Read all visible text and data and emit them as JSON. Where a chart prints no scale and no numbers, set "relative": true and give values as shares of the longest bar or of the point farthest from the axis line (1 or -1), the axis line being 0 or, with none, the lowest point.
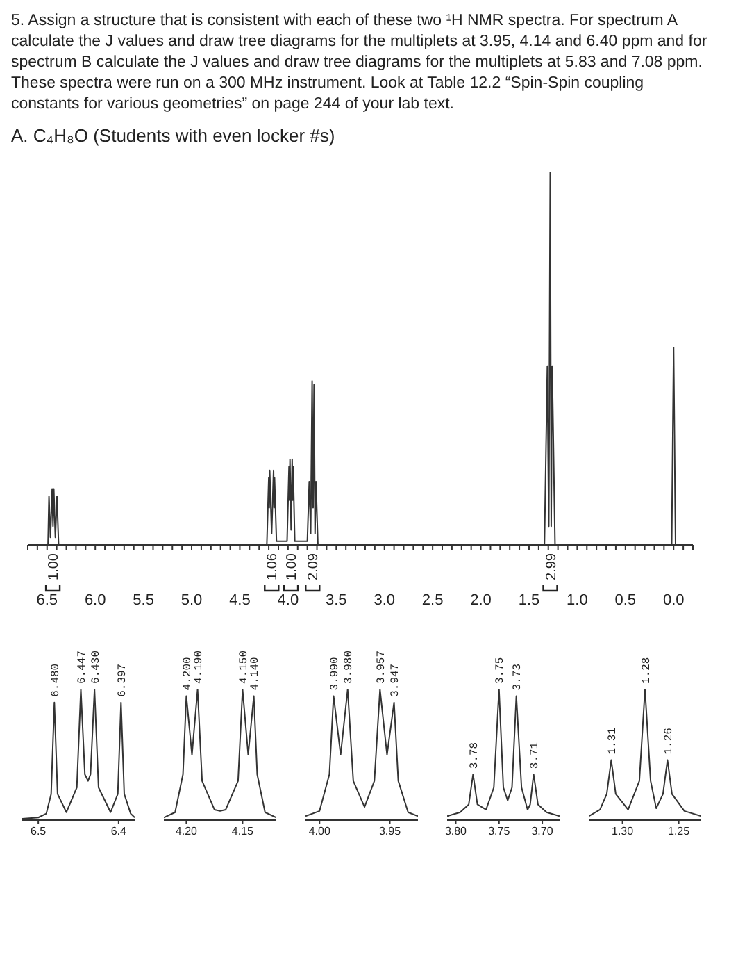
{
  "chart_data": [
    {
      "type": "line",
      "title": "5. Assign a structure that is consistent with each of these two ¹H NMR spectra. For spectrum A calculate the J values and draw tree diagrams for the multiplets at 3.95, 4.14 and 6.40 ppm and for spectrum B calculate the J values and draw tree diagrams for the multiplets at 5.83 and 7.08 ppm. These spectra were run on a 300 MHz instrument. Look at Table 12.2 “Spin-Spin coupling constants for various geometries” on page 244 of your lab text.",
      "subtitle": "A. C₄H₈O (Students with even locker #s)",
      "relative": true,
      "color": "#333333",
      "x": [
        6.7,
        6.49,
        6.48,
        6.465,
        6.447,
        6.438,
        6.43,
        6.414,
        6.397,
        6.38,
        4.22,
        4.2,
        4.195,
        4.19,
        4.17,
        4.15,
        4.145,
        4.14,
        4.12,
        4.01,
        3.99,
        3.985,
        3.98,
        3.968,
        3.957,
        3.952,
        3.947,
        3.93,
        3.8,
        3.78,
        3.765,
        3.75,
        3.74,
        3.73,
        3.72,
        3.71,
        3.69,
        1.34,
        1.31,
        1.295,
        1.28,
        1.27,
        1.26,
        1.23,
        0.02,
        0,
        -0.02,
        -0.2
      ],
      "values": [
        0,
        0,
        0.13,
        0.02,
        0.15,
        0.05,
        0.15,
        0.02,
        0.13,
        0,
        0,
        0.18,
        0.1,
        0.2,
        0.03,
        0.2,
        0.1,
        0.18,
        0.01,
        0.01,
        0.21,
        0.12,
        0.23,
        0.04,
        0.23,
        0.12,
        0.21,
        0.01,
        0.01,
        0.17,
        0.03,
        0.44,
        0.1,
        0.43,
        0.03,
        0.17,
        0,
        0,
        0.48,
        0.05,
        1,
        0.05,
        0.48,
        0,
        0,
        0.53,
        0,
        0
      ],
      "xlim": [
        6.7,
        -0.2
      ],
      "xticks": [
        {
          "value": 6.7,
          "label": null
        },
        {
          "value": 6.6,
          "label": null
        },
        6.5,
        {
          "value": 6.4,
          "label": null
        },
        {
          "value": 6.3,
          "label": null
        },
        {
          "value": 6.2,
          "label": null
        },
        {
          "value": 6.1,
          "label": null
        },
        {
          "value": 6,
          "label": "6.0"
        },
        {
          "value": 5.9,
          "label": null
        },
        {
          "value": 5.8,
          "label": null
        },
        {
          "value": 5.7,
          "label": null
        },
        {
          "value": 5.6,
          "label": null
        },
        5.5,
        {
          "value": 5.4,
          "label": null
        },
        {
          "value": 5.3,
          "label": null
        },
        {
          "value": 5.2,
          "label": null
        },
        {
          "value": 5.1,
          "label": null
        },
        {
          "value": 5,
          "label": "5.0"
        },
        {
          "value": 4.9,
          "label": null
        },
        {
          "value": 4.8,
          "label": null
        },
        {
          "value": 4.7,
          "label": null
        },
        {
          "value": 4.6,
          "label": null
        },
        4.5,
        {
          "value": 4.4,
          "label": null
        },
        {
          "value": 4.3,
          "label": null
        },
        {
          "value": 4.2,
          "label": null
        },
        {
          "value": 4.1,
          "label": null
        },
        {
          "value": 4,
          "label": "4.0"
        },
        {
          "value": 3.9,
          "label": null
        },
        {
          "value": 3.8,
          "label": null
        },
        {
          "value": 3.7,
          "label": null
        },
        {
          "value": 3.6,
          "label": null
        },
        3.5,
        {
          "value": 3.4,
          "label": null
        },
        {
          "value": 3.3,
          "label": null
        },
        {
          "value": 3.2,
          "label": null
        },
        {
          "value": 3.1,
          "label": null
        },
        {
          "value": 3,
          "label": "3.0"
        },
        {
          "value": 2.9,
          "label": null
        },
        {
          "value": 2.8,
          "label": null
        },
        {
          "value": 2.7,
          "label": null
        },
        {
          "value": 2.6,
          "label": null
        },
        2.5,
        {
          "value": 2.4,
          "label": null
        },
        {
          "value": 2.3,
          "label": null
        },
        {
          "value": 2.2,
          "label": null
        },
        {
          "value": 2.1,
          "label": null
        },
        {
          "value": 2,
          "label": "2.0"
        },
        {
          "value": 1.9,
          "label": null
        },
        {
          "value": 1.8,
          "label": null
        },
        {
          "value": 1.7,
          "label": null
        },
        {
          "value": 1.6,
          "label": null
        },
        1.5,
        {
          "value": 1.4,
          "label": null
        },
        {
          "value": 1.3,
          "label": null
        },
        {
          "value": 1.2,
          "label": null
        },
        {
          "value": 1.1,
          "label": null
        },
        {
          "value": 1,
          "label": "1.0"
        },
        {
          "value": 0.9,
          "label": null
        },
        {
          "value": 0.8,
          "label": null
        },
        {
          "value": 0.7,
          "label": null
        },
        {
          "value": 0.6,
          "label": null
        },
        0.5,
        {
          "value": 0.4,
          "label": null
        },
        {
          "value": 0.3,
          "label": null
        },
        {
          "value": 0.2,
          "label": null
        },
        {
          "value": 0.1,
          "label": null
        },
        {
          "value": 0,
          "label": "0.0"
        },
        {
          "value": -0.1,
          "label": null
        },
        {
          "value": -0.2,
          "label": null
        }
      ],
      "annotations": [
        {
          "text": "1.00",
          "x": 6.44,
          "y": 0
        },
        {
          "text": "1.06",
          "x": 4.17,
          "y": 0
        },
        {
          "text": "1.00",
          "x": 3.97,
          "y": 0
        },
        {
          "text": "2.09",
          "x": 3.745,
          "y": 0
        },
        {
          "text": "2.99",
          "x": 1.28,
          "y": 0
        }
      ]
    },
    {
      "type": "line",
      "relative": true,
      "color": "#333333",
      "x": [
        6.52,
        6.5,
        6.49,
        6.484,
        6.48,
        6.476,
        6.465,
        6.452,
        6.447,
        6.442,
        6.438,
        6.435,
        6.43,
        6.425,
        6.41,
        6.401,
        6.397,
        6.393,
        6.385,
        6.38
      ],
      "values": [
        0.01,
        0.02,
        0.05,
        0.2,
        0.9,
        0.2,
        0.06,
        0.25,
        1,
        0.35,
        0.3,
        0.35,
        1,
        0.25,
        0.06,
        0.2,
        0.9,
        0.2,
        0.05,
        0.02
      ],
      "xlim": [
        6.52,
        6.38
      ],
      "xticks": [
        6.5,
        6.4
      ],
      "annotations": [
        {
          "text": "6.480",
          "x": 6.48,
          "y": 0.9
        },
        {
          "text": "6.447",
          "x": 6.447,
          "y": 1
        },
        {
          "text": "6.430",
          "x": 6.43,
          "y": 1
        },
        {
          "text": "6.397",
          "x": 6.397,
          "y": 0.9
        }
      ]
    },
    {
      "type": "line",
      "relative": true,
      "color": "#333333",
      "x": [
        4.22,
        4.21,
        4.203,
        4.2,
        4.195,
        4.19,
        4.186,
        4.175,
        4.17,
        4.165,
        4.154,
        4.15,
        4.145,
        4.14,
        4.137,
        4.13,
        4.12
      ],
      "values": [
        0.02,
        0.06,
        0.35,
        0.95,
        0.5,
        1,
        0.3,
        0.08,
        0.07,
        0.08,
        0.3,
        1,
        0.5,
        0.95,
        0.35,
        0.06,
        0.02
      ],
      "xlim": [
        4.22,
        4.12
      ],
      "xticks": [
        {
          "value": 4.2,
          "label": "4.20"
        },
        4.15
      ],
      "annotations": [
        {
          "text": "4.200",
          "x": 4.2,
          "y": 0.95
        },
        {
          "text": "4.190",
          "x": 4.19,
          "y": 1
        },
        {
          "text": "4.150",
          "x": 4.15,
          "y": 1
        },
        {
          "text": "4.140",
          "x": 4.14,
          "y": 0.95
        }
      ]
    },
    {
      "type": "line",
      "relative": true,
      "color": "#333333",
      "x": [
        4.01,
        4.0,
        3.993,
        3.99,
        3.985,
        3.98,
        3.976,
        3.968,
        3.961,
        3.957,
        3.952,
        3.947,
        3.944,
        3.937,
        3.93
      ],
      "values": [
        0.03,
        0.07,
        0.35,
        0.95,
        0.5,
        1,
        0.3,
        0.1,
        0.3,
        1,
        0.5,
        0.9,
        0.3,
        0.06,
        0.03
      ],
      "xlim": [
        4.01,
        3.93
      ],
      "xticks": [
        {
          "value": 4,
          "label": "4.00"
        },
        3.95
      ],
      "annotations": [
        {
          "text": "3.990",
          "x": 3.99,
          "y": 0.95
        },
        {
          "text": "3.980",
          "x": 3.98,
          "y": 1
        },
        {
          "text": "3.957",
          "x": 3.957,
          "y": 1
        },
        {
          "text": "3.947",
          "x": 3.947,
          "y": 0.9
        }
      ]
    },
    {
      "type": "line",
      "relative": true,
      "color": "#333333",
      "x": [
        3.81,
        3.795,
        3.785,
        3.78,
        3.775,
        3.765,
        3.756,
        3.75,
        3.745,
        3.74,
        3.735,
        3.73,
        3.724,
        3.717,
        3.714,
        3.71,
        3.705,
        3.695,
        3.68
      ],
      "values": [
        0.03,
        0.06,
        0.12,
        0.35,
        0.12,
        0.08,
        0.25,
        1,
        0.25,
        0.15,
        0.25,
        0.95,
        0.25,
        0.08,
        0.12,
        0.35,
        0.12,
        0.06,
        0.03
      ],
      "xlim": [
        3.81,
        3.68
      ],
      "xticks": [
        {
          "value": 3.8,
          "label": "3.80"
        },
        3.75,
        {
          "value": 3.7,
          "label": "3.70"
        }
      ],
      "annotations": [
        {
          "text": "3.78",
          "x": 3.78,
          "y": 0.35
        },
        {
          "text": "3.75",
          "x": 3.75,
          "y": 1
        },
        {
          "text": "3.73",
          "x": 3.73,
          "y": 0.95
        },
        {
          "text": "3.71",
          "x": 3.71,
          "y": 0.35
        }
      ]
    },
    {
      "type": "line",
      "relative": true,
      "color": "#333333",
      "x": [
        1.33,
        1.32,
        1.314,
        1.31,
        1.306,
        1.295,
        1.285,
        1.28,
        1.275,
        1.27,
        1.264,
        1.26,
        1.256,
        1.245,
        1.23
      ],
      "values": [
        0.03,
        0.08,
        0.2,
        0.46,
        0.2,
        0.08,
        0.3,
        1,
        0.3,
        0.09,
        0.2,
        0.46,
        0.2,
        0.07,
        0.03
      ],
      "xlim": [
        1.33,
        1.23
      ],
      "xticks": [
        {
          "value": 1.3,
          "label": "1.30"
        },
        1.25
      ],
      "annotations": [
        {
          "text": "1.31",
          "x": 1.31,
          "y": 0.46
        },
        {
          "text": "1.28",
          "x": 1.28,
          "y": 1
        },
        {
          "text": "1.26",
          "x": 1.26,
          "y": 0.46
        }
      ]
    }
  ]
}
